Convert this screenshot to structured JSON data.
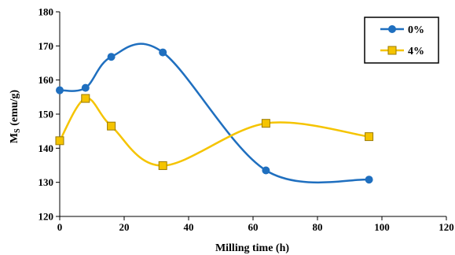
{
  "chart_data": {
    "type": "line",
    "title": "",
    "xlabel": "Milling  time (h)",
    "ylabel_main": "M",
    "ylabel_sub": "S",
    "ylabel_unit": " (emu/g)",
    "xlim": [
      0,
      120
    ],
    "ylim": [
      120,
      180
    ],
    "xticks": [
      0,
      20,
      40,
      60,
      80,
      100,
      120
    ],
    "yticks": [
      120,
      130,
      140,
      150,
      160,
      170,
      180
    ],
    "grid": false,
    "legend_position": "top-right",
    "smooth": true,
    "series": [
      {
        "name": "0%",
        "color": "#1f6fbf",
        "marker": "circle",
        "x": [
          0,
          8,
          16,
          32,
          64,
          96
        ],
        "y": [
          157,
          157.7,
          166.8,
          168.1,
          133.5,
          130.8
        ]
      },
      {
        "name": "4%",
        "color": "#f5c400",
        "marker": "square",
        "x": [
          0,
          8,
          16,
          32,
          64,
          96
        ],
        "y": [
          142.2,
          154.6,
          146.5,
          134.9,
          147.3,
          143.4
        ]
      }
    ]
  }
}
